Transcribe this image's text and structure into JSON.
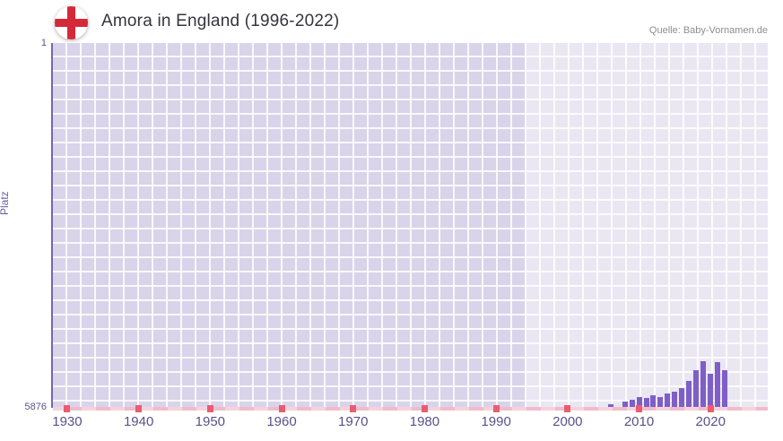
{
  "header": {
    "title": "Amora in England (1996-2022)",
    "source": "Quelle: Baby-Vornamen.de",
    "flag_icon": "england-flag-icon"
  },
  "colors": {
    "bar": "#7d5fc7",
    "plot_background": "#d9d4e9",
    "highlight_band": "rgba(255,255,255,0.45)",
    "axis": "#7668ad",
    "decade_tick": "#e85d72",
    "flag_cross": "#d5293a"
  },
  "chart_data": {
    "type": "bar",
    "title": "Amora in England (1996-2022)",
    "xlabel": "",
    "ylabel": "Platz",
    "y_axis": {
      "top_label": "1",
      "bottom_label": "5876",
      "min": 1,
      "max": 5876,
      "inverted": true
    },
    "x_axis": {
      "range": [
        1928,
        2028
      ],
      "tick_years": [
        1930,
        1940,
        1950,
        1960,
        1970,
        1980,
        1990,
        2000,
        2010,
        2020
      ],
      "tick_labels": [
        "1930",
        "1940",
        "1950",
        "1960",
        "1970",
        "1980",
        "1990",
        "2000",
        "2010",
        "2020"
      ]
    },
    "highlight_band": {
      "start_year": 1994,
      "end_year": 2028
    },
    "legend": "none",
    "grid": true,
    "series": [
      {
        "name": "Platz",
        "points": [
          {
            "year": 2006,
            "rank": 5818
          },
          {
            "year": 2008,
            "rank": 5779
          },
          {
            "year": 2009,
            "rank": 5741
          },
          {
            "year": 2010,
            "rank": 5705
          },
          {
            "year": 2011,
            "rank": 5712
          },
          {
            "year": 2012,
            "rank": 5677
          },
          {
            "year": 2013,
            "rank": 5699
          },
          {
            "year": 2014,
            "rank": 5648
          },
          {
            "year": 2015,
            "rank": 5621
          },
          {
            "year": 2016,
            "rank": 5562
          },
          {
            "year": 2017,
            "rank": 5448
          },
          {
            "year": 2018,
            "rank": 5270
          },
          {
            "year": 2019,
            "rank": 5128
          },
          {
            "year": 2020,
            "rank": 5331
          },
          {
            "year": 2021,
            "rank": 5133
          },
          {
            "year": 2022,
            "rank": 5269
          }
        ]
      }
    ]
  }
}
